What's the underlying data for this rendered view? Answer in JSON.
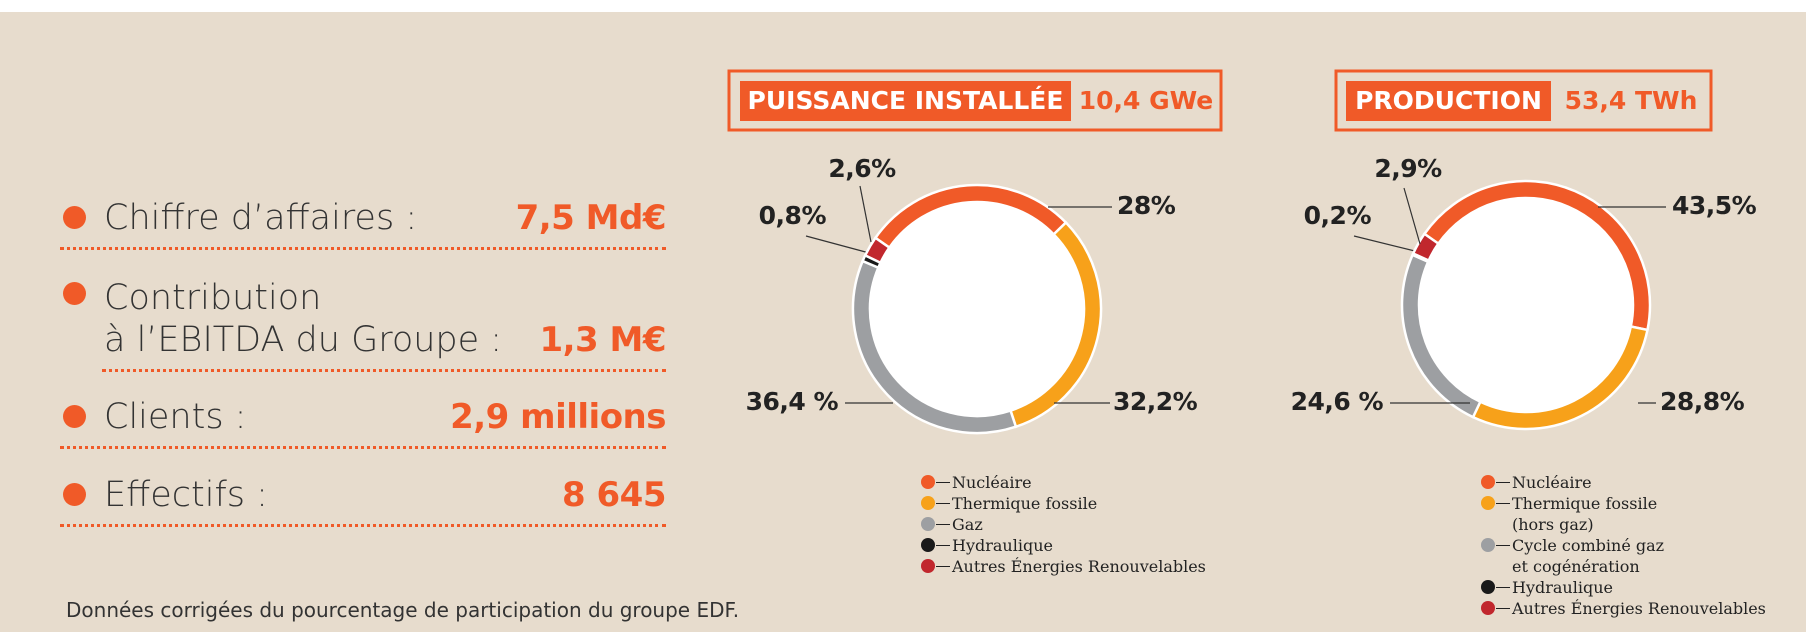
{
  "stats": [
    {
      "label": "Chiffre d’affaires :",
      "value": "7,5 Md€"
    },
    {
      "label": "Contribution\nà l’EBITDA du Groupe :",
      "value": "1,3 M€"
    },
    {
      "label": "Clients :",
      "value": "2,9 millions"
    },
    {
      "label": "Effectifs :",
      "value": "8 645"
    }
  ],
  "footnote": "Données corrigées du pourcentage de participation du groupe EDF.",
  "chart_data": [
    {
      "type": "pie",
      "donut": true,
      "title": "PUISSANCE INSTALLÉE",
      "subtitle": "10,4 GWe",
      "categories": [
        "Nucléaire",
        "Thermique fossile",
        "Gaz",
        "Hydraulique",
        "Autres Énergies Renouvelables"
      ],
      "colors": [
        "#f05a28",
        "#f7a11a",
        "#9d9fa2",
        "#1a1a1a",
        "#c1272d"
      ],
      "values": [
        28,
        32.2,
        36.4,
        0.8,
        2.6
      ],
      "value_labels": [
        "28%",
        "32,2%",
        "36,4 %",
        "0,8%",
        "2,6%"
      ]
    },
    {
      "type": "pie",
      "donut": true,
      "title": "PRODUCTION",
      "subtitle": "53,4 TWh",
      "categories": [
        "Nucléaire",
        "Thermique fossile\n(hors gaz)",
        "Cycle combiné gaz\net cogénération",
        "Hydraulique",
        "Autres Énergies Renouvelables"
      ],
      "colors": [
        "#f05a28",
        "#f7a11a",
        "#9d9fa2",
        "#1a1a1a",
        "#c1272d"
      ],
      "values": [
        43.5,
        28.8,
        24.6,
        0.2,
        2.9
      ],
      "value_labels": [
        "43,5%",
        "28,8%",
        "24,6 %",
        "0,2%",
        "2,9%"
      ]
    }
  ]
}
